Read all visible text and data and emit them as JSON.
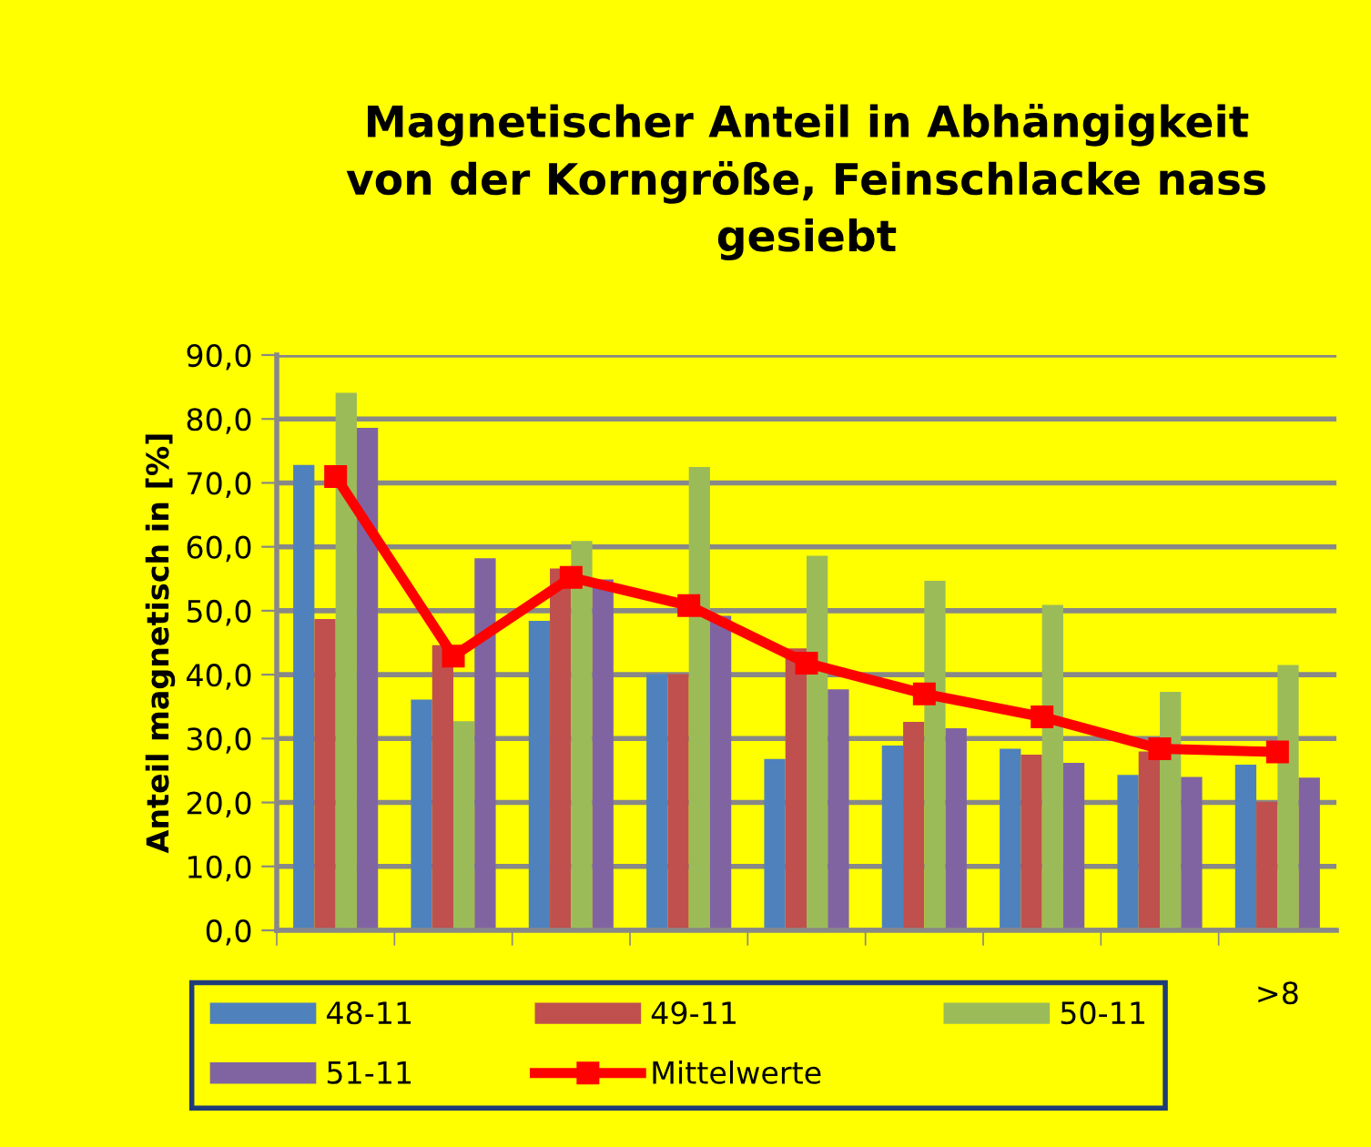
{
  "chart_data": {
    "type": "bar",
    "title": "Magnetischer Anteil in Abhängigkeit\nvon der Korngröße, Feinschlacke nass\ngesiebt",
    "ylabel": "Anteil magnetisch in [%]",
    "categories": [
      null,
      null,
      null,
      null,
      null,
      null,
      null,
      null,
      ">8"
    ],
    "series": [
      {
        "name": "48-11",
        "color": "#4f81bd",
        "values": [
          72.8,
          36.1,
          48.4,
          40.1,
          26.8,
          28.9,
          28.4,
          24.3,
          25.9
        ]
      },
      {
        "name": "49-11",
        "color": "#c0504d",
        "values": [
          48.7,
          44.6,
          56.6,
          40.1,
          44.1,
          32.6,
          27.5,
          28.0,
          20.1
        ]
      },
      {
        "name": "50-11",
        "color": "#9bbb59",
        "values": [
          84.1,
          32.7,
          60.9,
          72.5,
          58.6,
          54.7,
          50.9,
          37.3,
          41.5
        ]
      },
      {
        "name": "51-11",
        "color": "#8064a2",
        "values": [
          78.6,
          58.2,
          54.9,
          49.2,
          37.7,
          31.6,
          26.2,
          24.0,
          23.9
        ]
      },
      {
        "name": "Mittelwerte",
        "type": "line",
        "color": "#ff0000",
        "marker": "square",
        "values": [
          71.0,
          42.9,
          55.2,
          50.8,
          41.8,
          37.0,
          33.4,
          28.4,
          27.9
        ]
      }
    ],
    "ylim": [
      0,
      90
    ],
    "yticks": [
      {
        "value": 0,
        "label": "0,0"
      },
      {
        "value": 10,
        "label": "10,0"
      },
      {
        "value": 20,
        "label": "20,0"
      },
      {
        "value": 30,
        "label": "30,0"
      },
      {
        "value": 40,
        "label": "40,0"
      },
      {
        "value": 50,
        "label": "50,0"
      },
      {
        "value": 60,
        "label": "60,0"
      },
      {
        "value": 70,
        "label": "70,0"
      },
      {
        "value": 80,
        "label": "80,0"
      },
      {
        "value": 90,
        "label": "90,0"
      }
    ],
    "grid": "y",
    "legend": "bottom"
  }
}
